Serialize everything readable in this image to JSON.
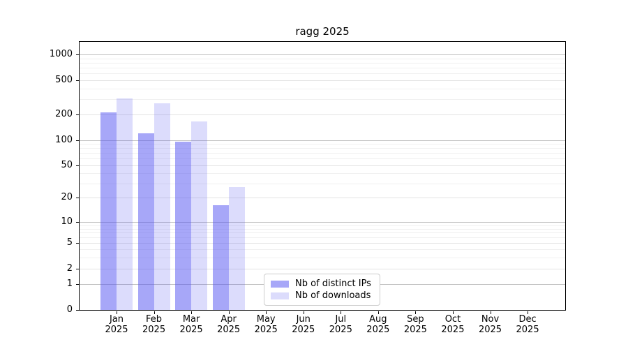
{
  "chart_data": {
    "type": "bar",
    "title": "ragg 2025",
    "categories": [
      "Jan",
      "Feb",
      "Mar",
      "Apr",
      "May",
      "Jun",
      "Jul",
      "Aug",
      "Sep",
      "Oct",
      "Nov",
      "Dec"
    ],
    "year": "2025",
    "series": [
      {
        "name": "Nb of distinct IPs",
        "color": "#5050f2",
        "alpha": 0.5,
        "values": [
          210,
          120,
          96,
          16,
          0,
          0,
          0,
          0,
          0,
          0,
          0,
          0
        ]
      },
      {
        "name": "Nb of downloads",
        "color": "#5050f2",
        "alpha": 0.2,
        "values": [
          305,
          270,
          164,
          27,
          0,
          0,
          0,
          0,
          0,
          0,
          0,
          0
        ]
      }
    ],
    "yticks": [
      0,
      1,
      2,
      5,
      10,
      20,
      50,
      100,
      200,
      500,
      1000
    ],
    "xlabel": "",
    "ylabel": "",
    "scale": "symlog",
    "grid": "both",
    "legend_position": "lower-center",
    "colors": {
      "grid_major": "#c0c0c0",
      "grid_mid": "#e3e3e3",
      "grid_minor": "#f0f0f0",
      "axis": "#000000",
      "legend_border": "#cccccc"
    }
  }
}
